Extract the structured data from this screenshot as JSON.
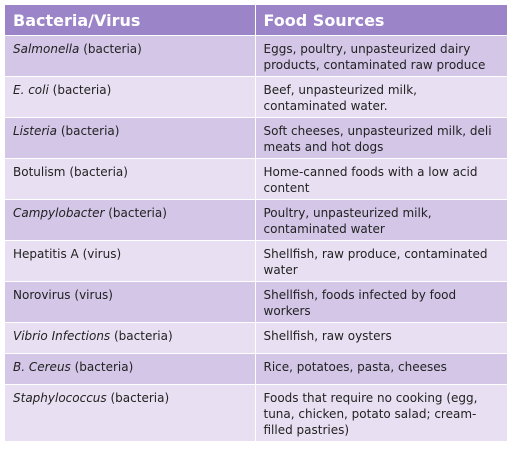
{
  "header": {
    "columns": [
      "Bacteria/Virus",
      "Food Sources"
    ]
  },
  "table": {
    "rows": [
      {
        "organism": "Salmonella",
        "italic": true,
        "kind": "(bacteria)",
        "sources": "Eggs, poultry, unpasteurized dairy products, contaminated raw produce"
      },
      {
        "organism": "E. coli",
        "italic": true,
        "kind": "(bacteria)",
        "sources": "Beef, unpasteurized milk, contaminated water."
      },
      {
        "organism": "Listeria",
        "italic": true,
        "kind": "(bacteria)",
        "sources": "Soft cheeses, unpasteurized milk, deli meats and hot dogs"
      },
      {
        "organism": "Botulism",
        "italic": false,
        "kind": "(bacteria)",
        "sources": "Home-canned foods with a low acid content"
      },
      {
        "organism": "Campylobacter",
        "italic": true,
        "kind": "(bacteria)",
        "sources": "Poultry, unpasteurized milk, contaminated water"
      },
      {
        "organism": "Hepatitis A",
        "italic": false,
        "kind": "(virus)",
        "sources": "Shellfish, raw produce, contaminated water"
      },
      {
        "organism": "Norovirus",
        "italic": false,
        "kind": "(virus)",
        "sources": "Shellfish, foods infected by food workers"
      },
      {
        "organism": "Vibrio Infections",
        "italic": true,
        "kind": "(bacteria)",
        "sources": "Shellfish, raw oysters"
      },
      {
        "organism": "B. Cereus",
        "italic": true,
        "kind": "(bacteria)",
        "sources": "Rice, potatoes, pasta, cheeses"
      },
      {
        "organism": "Staphylococcus",
        "italic": true,
        "kind": "(bacteria)",
        "sources": "Foods that require no cooking (egg, tuna, chicken, potato salad; cream-filled pastries)"
      }
    ]
  }
}
